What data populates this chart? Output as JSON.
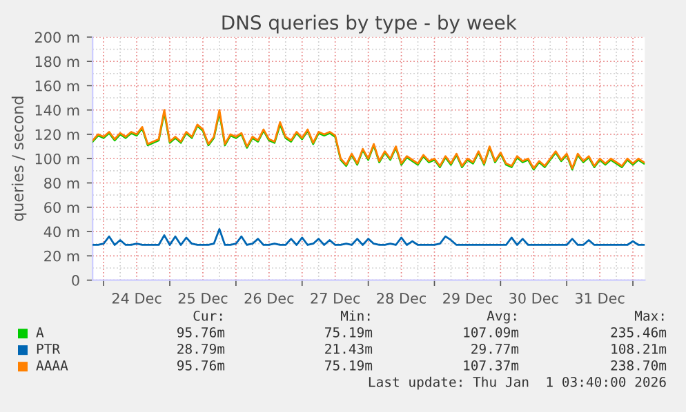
{
  "chart_data": {
    "type": "line",
    "title": "DNS queries by type - by week",
    "ylabel": "queries / second",
    "x": [
      "2025-12-23T20:00",
      "2025-12-23T22:00",
      "2025-12-24T00:00",
      "2025-12-24T02:00",
      "2025-12-24T04:00",
      "2025-12-24T06:00",
      "2025-12-24T08:00",
      "2025-12-24T10:00",
      "2025-12-24T12:00",
      "2025-12-24T14:00",
      "2025-12-24T16:00",
      "2025-12-24T18:00",
      "2025-12-24T20:00",
      "2025-12-24T22:00",
      "2025-12-25T00:00",
      "2025-12-25T02:00",
      "2025-12-25T04:00",
      "2025-12-25T06:00",
      "2025-12-25T08:00",
      "2025-12-25T10:00",
      "2025-12-25T12:00",
      "2025-12-25T14:00",
      "2025-12-25T16:00",
      "2025-12-25T18:00",
      "2025-12-25T20:00",
      "2025-12-25T22:00",
      "2025-12-26T00:00",
      "2025-12-26T02:00",
      "2025-12-26T04:00",
      "2025-12-26T06:00",
      "2025-12-26T08:00",
      "2025-12-26T10:00",
      "2025-12-26T12:00",
      "2025-12-26T14:00",
      "2025-12-26T16:00",
      "2025-12-26T18:00",
      "2025-12-26T20:00",
      "2025-12-26T22:00",
      "2025-12-27T00:00",
      "2025-12-27T02:00",
      "2025-12-27T04:00",
      "2025-12-27T06:00",
      "2025-12-27T08:00",
      "2025-12-27T10:00",
      "2025-12-27T12:00",
      "2025-12-27T14:00",
      "2025-12-27T16:00",
      "2025-12-27T18:00",
      "2025-12-27T20:00",
      "2025-12-27T22:00",
      "2025-12-28T00:00",
      "2025-12-28T02:00",
      "2025-12-28T04:00",
      "2025-12-28T06:00",
      "2025-12-28T08:00",
      "2025-12-28T10:00",
      "2025-12-28T12:00",
      "2025-12-28T14:00",
      "2025-12-28T16:00",
      "2025-12-28T18:00",
      "2025-12-28T20:00",
      "2025-12-28T22:00",
      "2025-12-29T00:00",
      "2025-12-29T02:00",
      "2025-12-29T04:00",
      "2025-12-29T06:00",
      "2025-12-29T08:00",
      "2025-12-29T10:00",
      "2025-12-29T12:00",
      "2025-12-29T14:00",
      "2025-12-29T16:00",
      "2025-12-29T18:00",
      "2025-12-29T20:00",
      "2025-12-29T22:00",
      "2025-12-30T00:00",
      "2025-12-30T02:00",
      "2025-12-30T04:00",
      "2025-12-30T06:00",
      "2025-12-30T08:00",
      "2025-12-30T10:00",
      "2025-12-30T12:00",
      "2025-12-30T14:00",
      "2025-12-30T16:00",
      "2025-12-30T18:00",
      "2025-12-30T20:00",
      "2025-12-30T22:00",
      "2025-12-31T00:00",
      "2025-12-31T02:00",
      "2025-12-31T04:00",
      "2025-12-31T06:00",
      "2025-12-31T08:00",
      "2025-12-31T10:00",
      "2025-12-31T12:00",
      "2025-12-31T14:00",
      "2025-12-31T16:00",
      "2025-12-31T18:00",
      "2025-12-31T20:00",
      "2025-12-31T22:00",
      "2026-01-01T00:00",
      "2026-01-01T02:00",
      "2026-01-01T04:00"
    ],
    "series": [
      {
        "name": "A",
        "color": "#00cc00",
        "values": [
          114,
          119,
          117,
          121,
          115,
          120,
          117,
          121,
          119,
          125,
          111,
          113,
          115,
          138,
          113,
          117,
          113,
          121,
          117,
          127,
          123,
          111,
          117,
          138,
          111,
          119,
          117,
          120,
          109,
          117,
          114,
          123,
          115,
          113,
          128,
          117,
          114,
          121,
          116,
          123,
          112,
          121,
          119,
          121,
          118,
          99,
          94,
          103,
          95,
          107,
          99,
          111,
          97,
          105,
          99,
          109,
          95,
          101,
          98,
          95,
          102,
          97,
          99,
          93,
          101,
          95,
          103,
          93,
          99,
          96,
          105,
          95,
          109,
          97,
          104,
          95,
          93,
          101,
          97,
          99,
          91,
          97,
          93,
          99,
          105,
          98,
          103,
          91,
          103,
          97,
          101,
          93,
          99,
          95,
          99,
          96,
          93,
          99,
          95,
          99,
          96
        ]
      },
      {
        "name": "PTR",
        "color": "#0066b3",
        "values": [
          29,
          29,
          30,
          36,
          29,
          33,
          29,
          29,
          30,
          29,
          29,
          29,
          29,
          37,
          29,
          36,
          29,
          35,
          30,
          29,
          29,
          29,
          30,
          42,
          29,
          29,
          30,
          36,
          29,
          30,
          34,
          29,
          29,
          30,
          29,
          29,
          34,
          29,
          35,
          29,
          30,
          34,
          29,
          33,
          29,
          29,
          30,
          29,
          34,
          29,
          34,
          30,
          29,
          29,
          30,
          29,
          35,
          29,
          32,
          29,
          29,
          29,
          29,
          30,
          36,
          33,
          29,
          29,
          29,
          29,
          29,
          29,
          29,
          29,
          29,
          29,
          35,
          29,
          34,
          29,
          29,
          29,
          29,
          29,
          29,
          29,
          29,
          34,
          29,
          29,
          33,
          29,
          29,
          29,
          29,
          29,
          29,
          29,
          32,
          29,
          29
        ]
      },
      {
        "name": "AAAA",
        "color": "#ff8000",
        "values": [
          115,
          120,
          118,
          122,
          116,
          121,
          118,
          122,
          120,
          126,
          112,
          114,
          116,
          140,
          114,
          118,
          114,
          122,
          118,
          128,
          124,
          112,
          118,
          140,
          112,
          120,
          118,
          121,
          110,
          118,
          115,
          124,
          116,
          114,
          130,
          118,
          115,
          122,
          117,
          124,
          113,
          122,
          120,
          122,
          119,
          100,
          95,
          104,
          96,
          108,
          100,
          112,
          98,
          106,
          100,
          110,
          96,
          102,
          99,
          96,
          103,
          98,
          100,
          94,
          102,
          96,
          104,
          94,
          100,
          97,
          106,
          96,
          110,
          98,
          105,
          96,
          94,
          102,
          98,
          100,
          92,
          98,
          94,
          100,
          106,
          99,
          104,
          92,
          104,
          98,
          102,
          94,
          100,
          96,
          100,
          97,
          94,
          100,
          96,
          100,
          97
        ]
      }
    ],
    "xlim": [
      "2025-12-23T20:00",
      "2026-01-01T04:20"
    ],
    "xticks": [
      {
        "value": "2025-12-24T00:00",
        "label": null
      },
      {
        "value": "2025-12-24T12:00",
        "label": "24 Dec"
      },
      {
        "value": "2025-12-25T00:00",
        "label": null
      },
      {
        "value": "2025-12-25T12:00",
        "label": "25 Dec"
      },
      {
        "value": "2025-12-26T00:00",
        "label": null
      },
      {
        "value": "2025-12-26T12:00",
        "label": "26 Dec"
      },
      {
        "value": "2025-12-27T00:00",
        "label": null
      },
      {
        "value": "2025-12-27T12:00",
        "label": "27 Dec"
      },
      {
        "value": "2025-12-28T00:00",
        "label": null
      },
      {
        "value": "2025-12-28T12:00",
        "label": "28 Dec"
      },
      {
        "value": "2025-12-29T00:00",
        "label": null
      },
      {
        "value": "2025-12-29T12:00",
        "label": "29 Dec"
      },
      {
        "value": "2025-12-30T00:00",
        "label": null
      },
      {
        "value": "2025-12-30T12:00",
        "label": "30 Dec"
      },
      {
        "value": "2025-12-31T00:00",
        "label": null
      },
      {
        "value": "2025-12-31T12:00",
        "label": "31 Dec"
      },
      {
        "value": "2026-01-01T00:00",
        "label": null
      }
    ],
    "ylim": [
      0,
      200
    ],
    "yticks": [
      0,
      {
        "value": 20,
        "label": "20 m"
      },
      {
        "value": 40,
        "label": "40 m"
      },
      {
        "value": 60,
        "label": "60 m"
      },
      {
        "value": 80,
        "label": "80 m"
      },
      {
        "value": 100,
        "label": "100 m"
      },
      {
        "value": 120,
        "label": "120 m"
      },
      {
        "value": 140,
        "label": "140 m"
      },
      {
        "value": 160,
        "label": "160 m"
      },
      {
        "value": 180,
        "label": "180 m"
      },
      {
        "value": 200,
        "label": "200 m"
      }
    ],
    "grid": true,
    "legend": "bottom",
    "line_style": "solid",
    "marker": "none",
    "annotations": [
      "Cur:",
      "Min:",
      "Avg:",
      "Max:",
      "95.76m",
      "75.19m",
      "107.09m",
      "235.46m",
      "28.79m",
      "21.43m",
      "29.77m",
      "108.21m",
      "95.76m",
      "75.19m",
      "107.37m",
      "238.70m",
      "Last update: Thu Jan  1 03:40:00 2026"
    ]
  }
}
